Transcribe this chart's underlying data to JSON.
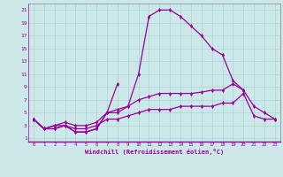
{
  "xlabel": "Windchill (Refroidissement éolien,°C)",
  "background_color": "#cce8e8",
  "line_color": "#990099",
  "xlim": [
    -0.5,
    23.5
  ],
  "ylim": [
    0.5,
    22
  ],
  "xticks": [
    0,
    1,
    2,
    3,
    4,
    5,
    6,
    7,
    8,
    9,
    10,
    11,
    12,
    13,
    14,
    15,
    16,
    17,
    18,
    19,
    20,
    21,
    22,
    23
  ],
  "yticks": [
    1,
    3,
    5,
    7,
    9,
    11,
    13,
    15,
    17,
    19,
    21
  ],
  "grid_color": "#aad4d4",
  "curves": [
    {
      "x": [
        0,
        1,
        2,
        3,
        4,
        5,
        6,
        7,
        8
      ],
      "y": [
        4,
        2.5,
        2.5,
        3,
        2,
        2,
        2.5,
        5,
        9.5
      ]
    },
    {
      "x": [
        0,
        1,
        2,
        3,
        4,
        5,
        6,
        7,
        8,
        9,
        10,
        11,
        12,
        13,
        14,
        15,
        16,
        17,
        18,
        19,
        20
      ],
      "y": [
        4,
        2.5,
        2.5,
        3,
        2,
        2,
        2.5,
        5,
        5,
        6,
        11,
        20,
        21,
        21,
        20,
        18.5,
        17,
        15,
        14,
        10,
        8.5
      ]
    },
    {
      "x": [
        0,
        1,
        2,
        3,
        4,
        5,
        6,
        7,
        8,
        9,
        10,
        11,
        12,
        13,
        14,
        15,
        16,
        17,
        18,
        19,
        20,
        21,
        22,
        23
      ],
      "y": [
        4,
        2.5,
        3,
        3.5,
        3,
        3,
        3.5,
        5,
        5.5,
        6,
        7,
        7.5,
        8,
        8,
        8,
        8,
        8.2,
        8.5,
        8.5,
        9.5,
        8.5,
        6,
        5,
        4
      ]
    },
    {
      "x": [
        0,
        1,
        2,
        3,
        4,
        5,
        6,
        7,
        8,
        9,
        10,
        11,
        12,
        13,
        14,
        15,
        16,
        17,
        18,
        19,
        20,
        21,
        22,
        23
      ],
      "y": [
        4,
        2.5,
        3,
        3,
        2.5,
        2.5,
        3,
        4,
        4,
        4.5,
        5,
        5.5,
        5.5,
        5.5,
        6,
        6,
        6,
        6,
        6.5,
        6.5,
        8,
        4.5,
        4,
        4
      ]
    }
  ]
}
